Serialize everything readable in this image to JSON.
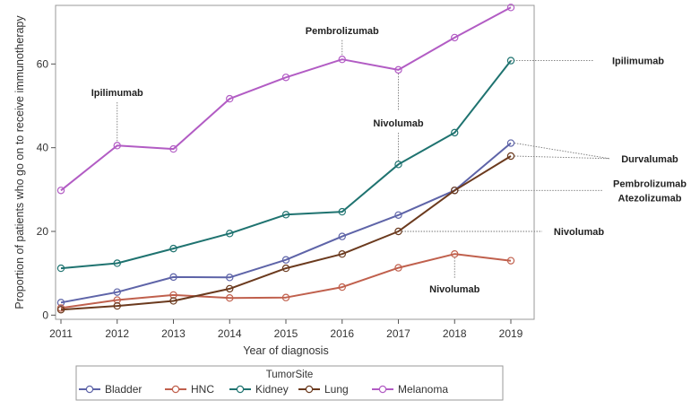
{
  "chart_data": {
    "type": "line",
    "title": "",
    "xlabel": "Year of diagnosis",
    "ylabel": "Proportion of patients who go on to receive immunotherapy",
    "x": [
      "2011",
      "2012",
      "2013",
      "2014",
      "2015",
      "2016",
      "2017",
      "2018",
      "2019"
    ],
    "xlim": [
      2011,
      2019
    ],
    "ylim": [
      -1,
      74
    ],
    "yticks": [
      "0",
      "20",
      "40",
      "60"
    ],
    "ytick_values": [
      0,
      20,
      40,
      60
    ],
    "legend_title": "TumorSite",
    "legend_position": "bottom",
    "series": [
      {
        "name": "Bladder",
        "color": "#5e64a8",
        "values": [
          3.0,
          5.5,
          9.1,
          9.0,
          13.2,
          18.8,
          23.9,
          29.8,
          41.1
        ]
      },
      {
        "name": "HNC",
        "color": "#c0604d",
        "values": [
          1.7,
          3.6,
          4.8,
          4.1,
          4.2,
          6.7,
          11.3,
          14.6,
          13.0
        ]
      },
      {
        "name": "Kidney",
        "color": "#1f7370",
        "values": [
          11.2,
          12.4,
          15.9,
          19.5,
          24.0,
          24.7,
          36.0,
          43.6,
          60.8
        ]
      },
      {
        "name": "Lung",
        "color": "#6b3a1e",
        "values": [
          1.3,
          2.2,
          3.4,
          6.3,
          11.2,
          14.6,
          20.0,
          29.8,
          38.0
        ]
      },
      {
        "name": "Melanoma",
        "color": "#b25cc4",
        "values": [
          29.8,
          40.5,
          39.7,
          51.7,
          56.8,
          61.1,
          58.6,
          66.3,
          73.5
        ]
      }
    ],
    "annotations": [
      {
        "id": "ann-ipilimumab-2012",
        "lines": [
          "Ipilimumab"
        ]
      },
      {
        "id": "ann-pembrolizumab-2016",
        "lines": [
          "Pembrolizumab"
        ]
      },
      {
        "id": "ann-nivolumab-2017",
        "lines": [
          "Nivolumab"
        ]
      },
      {
        "id": "ann-ipilimumab-right",
        "lines": [
          "Ipilimumab"
        ]
      },
      {
        "id": "ann-durvalumab-right",
        "lines": [
          "Durvalumab"
        ]
      },
      {
        "id": "ann-pembro-atezo-right",
        "lines": [
          "Pembrolizumab",
          "Atezolizumab"
        ]
      },
      {
        "id": "ann-nivolumab-right",
        "lines": [
          "Nivolumab"
        ]
      },
      {
        "id": "ann-nivolumab-2018",
        "lines": [
          "Nivolumab"
        ]
      }
    ]
  }
}
